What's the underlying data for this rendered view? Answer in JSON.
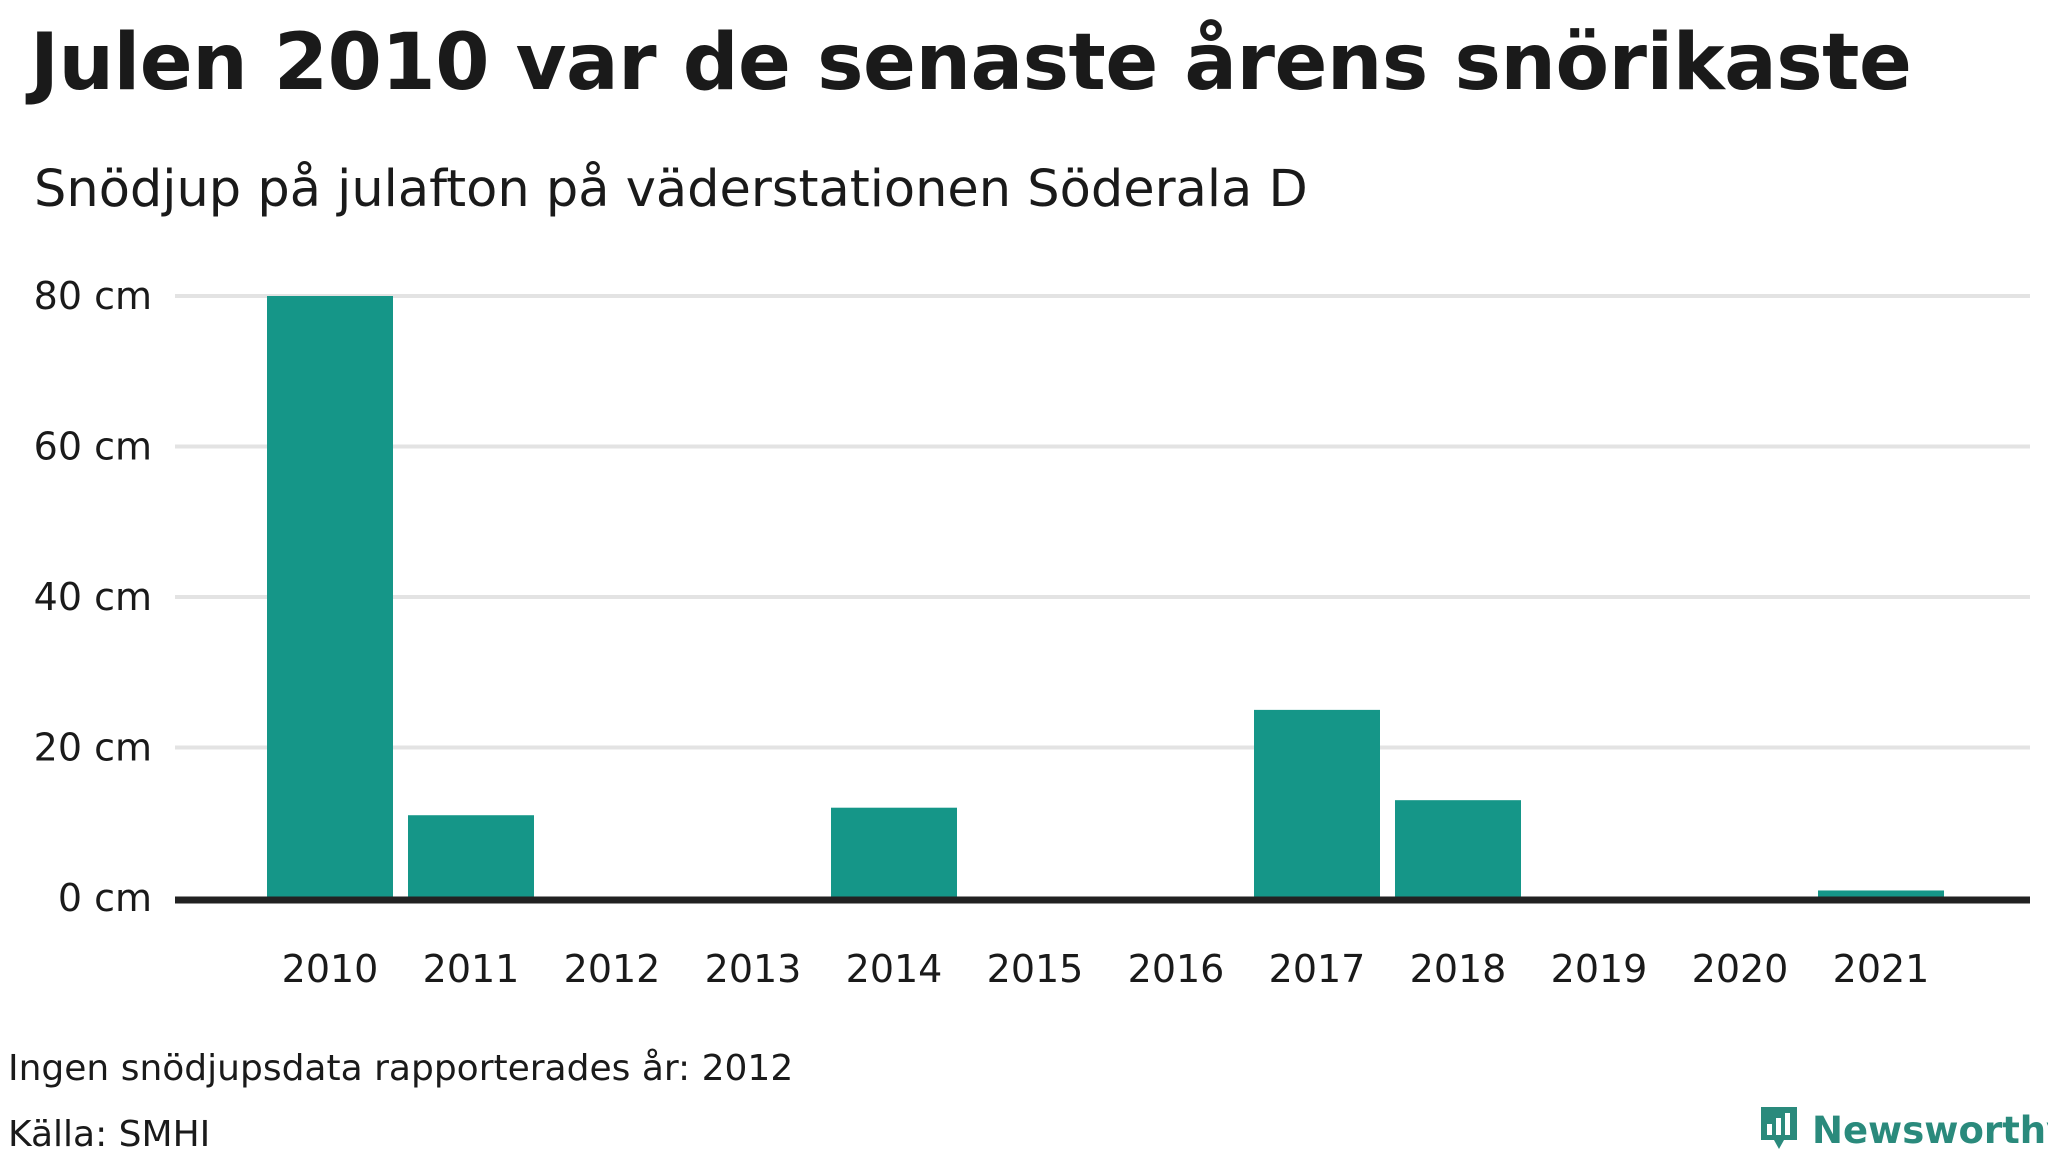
{
  "colors": {
    "bar": "#159688",
    "grid": "#e3e3e3",
    "baseline": "#222222",
    "text": "#1a1a1a",
    "brand": "#2a8a7c"
  },
  "chart_data": {
    "type": "bar",
    "title": "Julen 2010 var de senaste årens snörikaste",
    "subtitle": "Snödjup på julafton på väderstationen Söderala D",
    "categories": [
      "2010",
      "2011",
      "2012",
      "2013",
      "2014",
      "2015",
      "2016",
      "2017",
      "2018",
      "2019",
      "2020",
      "2021"
    ],
    "values": [
      80,
      11,
      0,
      0,
      12,
      0,
      0,
      25,
      13,
      0,
      0,
      1
    ],
    "unit": "cm",
    "ylim": [
      0,
      80
    ],
    "yticks": [
      0,
      20,
      40,
      60,
      80
    ],
    "ytick_labels": [
      "0 cm",
      "20 cm",
      "40 cm",
      "60 cm",
      "80 cm"
    ],
    "grid": true,
    "legend": "none"
  },
  "footer": {
    "note": "Ingen snödjupsdata rapporterades år: 2012",
    "source": "Källa: SMHI",
    "brand": "Newsworthy",
    "brand_icon": "bar-chart-logo-icon"
  }
}
